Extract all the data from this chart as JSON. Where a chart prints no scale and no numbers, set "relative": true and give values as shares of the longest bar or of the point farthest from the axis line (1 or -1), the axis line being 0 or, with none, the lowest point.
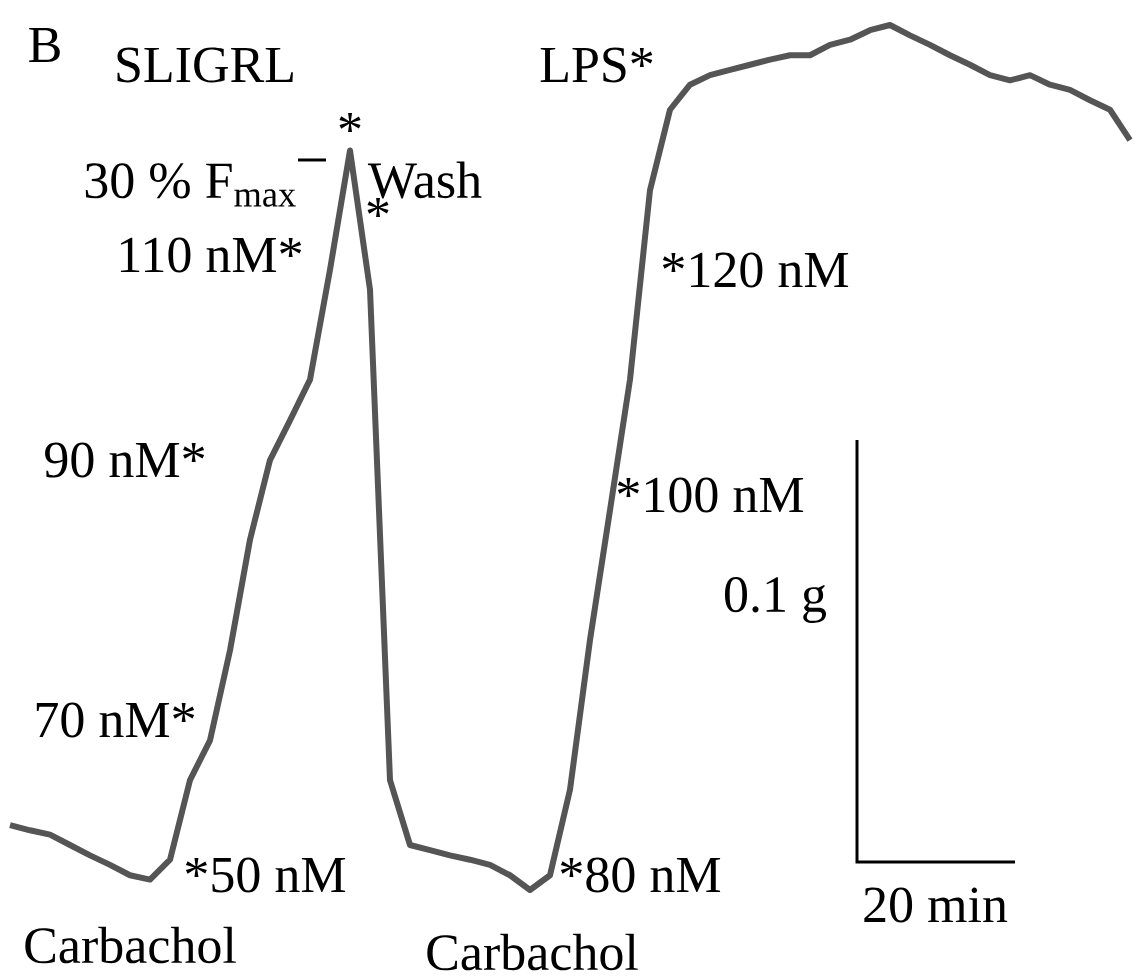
{
  "chart_data": {
    "type": "line",
    "title": "B",
    "relative": true,
    "color": "#555555",
    "categories": [
      null,
      null,
      null,
      null,
      null,
      null,
      null,
      null,
      null,
      null,
      null,
      null,
      null,
      null,
      null,
      null,
      null,
      null,
      null,
      null,
      null,
      null,
      null,
      null,
      null,
      null,
      null,
      null,
      null,
      null,
      null,
      null,
      null,
      null,
      null,
      null,
      null,
      null,
      null,
      null,
      null,
      null,
      null,
      null,
      null,
      null,
      null,
      null,
      null,
      null,
      null,
      null,
      null,
      null,
      null,
      null,
      null
    ],
    "values": [
      0.075,
      0.069,
      0.064,
      0.052,
      0.04,
      0.029,
      0.017,
      0.012,
      0.035,
      0.127,
      0.173,
      0.277,
      0.405,
      0.497,
      0.543,
      0.59,
      0.717,
      0.855,
      0.694,
      0.127,
      0.052,
      0.046,
      0.04,
      0.035,
      0.029,
      0.017,
      0,
      0.017,
      0.116,
      0.289,
      0.439,
      0.59,
      0.809,
      0.902,
      0.931,
      0.942,
      0.948,
      0.954,
      0.96,
      0.965,
      0.965,
      0.977,
      0.983,
      0.994,
      1,
      0.988,
      0.977,
      0.965,
      0.954,
      0.942,
      0.936,
      0.942,
      0.931,
      0.925,
      0.913,
      0.902,
      0.867
    ],
    "annotations": [
      "SLIGRL",
      "LPS*",
      "*",
      "30 % F$_{max}$",
      "Wash",
      "*",
      "110 nM*",
      "*120 nM",
      "90 nM*",
      "*100 nM",
      "0.1 g",
      "70 nM*",
      "*50 nM",
      "*80 nM",
      "20 min",
      "Carbachol",
      "Carbachol"
    ]
  }
}
